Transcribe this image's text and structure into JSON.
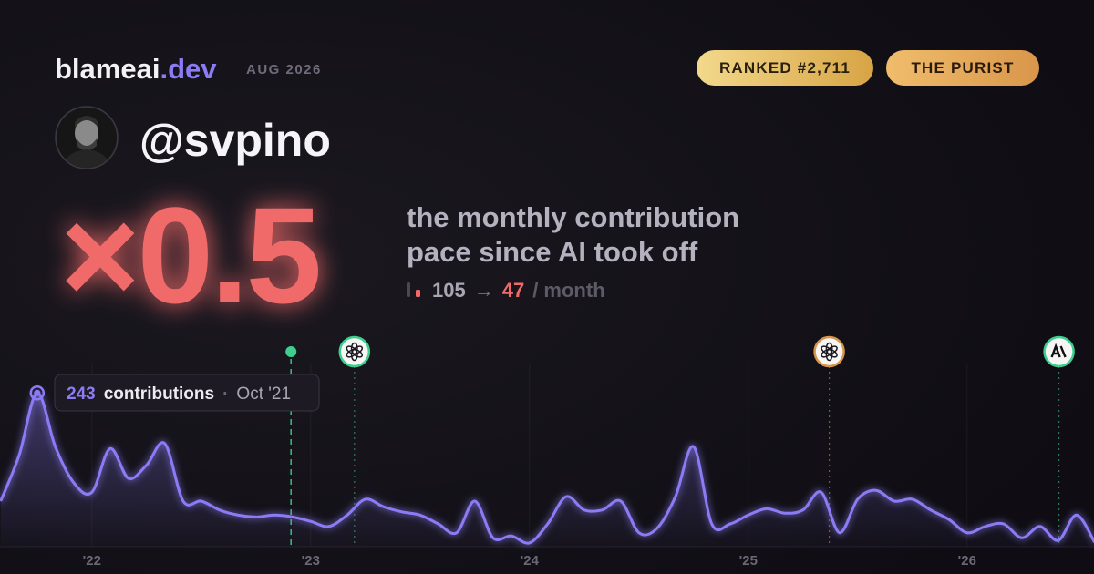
{
  "header": {
    "brand": "blameai",
    "brand_tld": ".dev",
    "date": "AUG 2026",
    "badges": [
      "RANKED #2,711",
      "THE PURIST"
    ]
  },
  "user": {
    "handle": "@svpino"
  },
  "multiplier": {
    "label": "×0.5",
    "caption": [
      "the monthly contribution",
      "pace since AI took off"
    ],
    "before": "105",
    "arrow": "→",
    "after": "47",
    "unit": "/ month"
  },
  "chart_data": {
    "type": "line",
    "x": [
      2021.583,
      2021.667,
      2021.75,
      2021.833,
      2021.917,
      2022,
      2022.083,
      2022.167,
      2022.25,
      2022.333,
      2022.417,
      2022.5,
      2022.583,
      2022.667,
      2022.75,
      2022.833,
      2022.917,
      2023,
      2023.083,
      2023.167,
      2023.25,
      2023.333,
      2023.417,
      2023.5,
      2023.583,
      2023.667,
      2023.75,
      2023.833,
      2023.917,
      2024,
      2024.083,
      2024.167,
      2024.25,
      2024.333,
      2024.417,
      2024.5,
      2024.583,
      2024.667,
      2024.75,
      2024.833,
      2024.917,
      2025,
      2025.083,
      2025.167,
      2025.25,
      2025.333,
      2025.417,
      2025.5,
      2025.583,
      2025.667,
      2025.75,
      2025.833,
      2025.917,
      2026,
      2026.083,
      2026.167,
      2026.25,
      2026.333,
      2026.417,
      2026.5,
      2026.583
    ],
    "series": [
      {
        "name": "contributions",
        "color": "#8b7cf6",
        "values": [
          72,
          144,
          243,
          158,
          101,
          86,
          155,
          108,
          129,
          163,
          72,
          72,
          58,
          50,
          47,
          50,
          47,
          40,
          32,
          50,
          75,
          63,
          55,
          50,
          36,
          22,
          72,
          14,
          17,
          6,
          36,
          79,
          58,
          58,
          72,
          22,
          29,
          79,
          158,
          36,
          36,
          50,
          60,
          53,
          58,
          86,
          22,
          75,
          89,
          72,
          75,
          58,
          43,
          22,
          32,
          36,
          14,
          32,
          10,
          50,
          7
        ]
      }
    ],
    "xlim": [
      2021.58,
      2026.58
    ],
    "ylim": [
      0,
      288
    ],
    "xticks": [
      {
        "value": 2022,
        "label": "'22"
      },
      {
        "value": 2023,
        "label": "'23"
      },
      {
        "value": 2024,
        "label": "'24"
      },
      {
        "value": 2025,
        "label": "'25"
      },
      {
        "value": 2026,
        "label": "'26"
      }
    ],
    "grid": true,
    "tooltip": {
      "index": 2,
      "unit": "contributions",
      "separator": "·",
      "date": "Oct '21"
    },
    "events": [
      {
        "x": 2022.91,
        "color": "#3ecf8e",
        "icon": "dot"
      },
      {
        "x": 2023.2,
        "color": "#3ecf8e",
        "icon": "openai"
      },
      {
        "x": 2025.37,
        "color": "#d9964a",
        "icon": "openai"
      },
      {
        "x": 2026.42,
        "color": "#3ecf8e",
        "icon": "anthropic"
      }
    ]
  }
}
